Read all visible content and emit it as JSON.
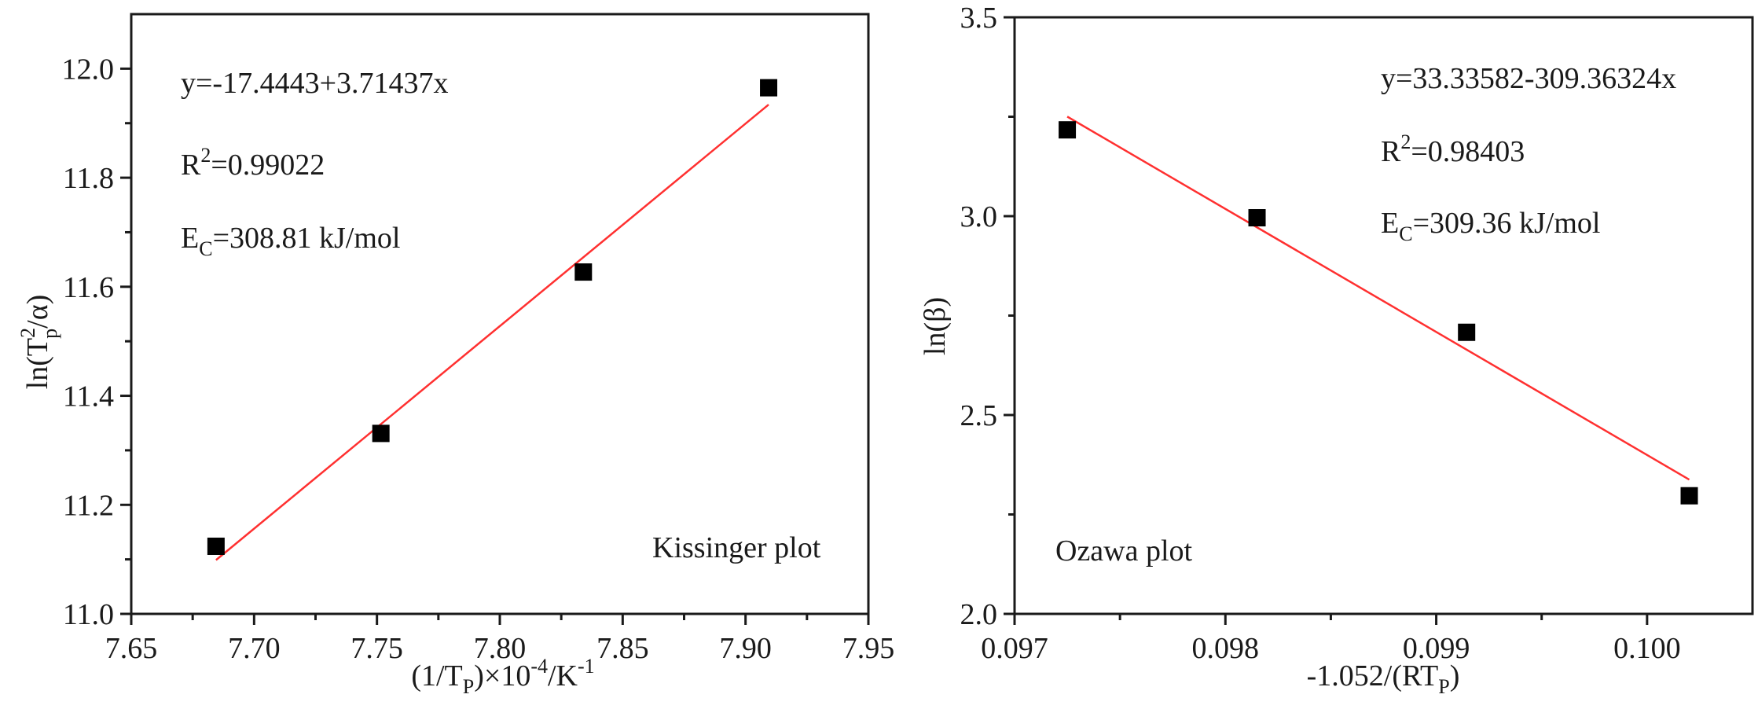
{
  "chart_data": [
    {
      "type": "scatter",
      "id": "kissinger",
      "title": "",
      "plot_label": "Kissinger plot",
      "xlabel": {
        "main": "(1/T",
        "sub": "P",
        "rest1": ")×10",
        "sup1": "-4",
        "rest2": "/K",
        "sup2": "-1"
      },
      "ylabel": {
        "main": "ln(T",
        "sup": "2",
        "sub": "p",
        "rest": "/α)"
      },
      "xlim": [
        7.65,
        7.95
      ],
      "ylim": [
        11.0,
        12.1
      ],
      "xticks": [
        7.65,
        7.7,
        7.75,
        7.8,
        7.85,
        7.9,
        7.95
      ],
      "xtick_labels": [
        "7.65",
        "7.70",
        "7.75",
        "7.80",
        "7.85",
        "7.90",
        "7.95"
      ],
      "xminor": [
        7.675,
        7.725,
        7.775,
        7.825,
        7.875,
        7.925
      ],
      "yticks": [
        11.0,
        11.2,
        11.4,
        11.6,
        11.8,
        12.0
      ],
      "ytick_labels": [
        "11.0",
        "11.2",
        "11.4",
        "11.6",
        "11.8",
        "12.0"
      ],
      "yminor": [
        11.1,
        11.3,
        11.5,
        11.7,
        11.9
      ],
      "grid": false,
      "series": [
        {
          "name": "data",
          "marker": "square",
          "color": "#000000",
          "x": [
            7.6845,
            7.7516,
            7.834,
            7.9094
          ],
          "y": [
            11.124,
            11.331,
            11.627,
            11.965
          ]
        }
      ],
      "fit": {
        "color": "#ff3030",
        "intercept": -17.4443,
        "slope": 3.71437,
        "x_range": [
          7.6845,
          7.9094
        ]
      },
      "annotations": {
        "equation": "y=-17.4443+3.71437x",
        "r2_label": "R",
        "r2_sup": "2",
        "r2_value": "=0.99022",
        "ec_label": "E",
        "ec_sub": "C",
        "ec_value": "=308.81 kJ/mol"
      }
    },
    {
      "type": "scatter",
      "id": "ozawa",
      "title": "",
      "plot_label": "Ozawa plot",
      "xlabel": {
        "main": "-1.052/(RT",
        "sub": "P",
        "rest": ")"
      },
      "ylabel": {
        "main": "ln(β)"
      },
      "xlim": [
        0.097,
        0.1005
      ],
      "ylim": [
        2.0,
        3.5
      ],
      "xticks": [
        0.097,
        0.098,
        0.099,
        0.1
      ],
      "xtick_labels": [
        "0.097",
        "0.098",
        "0.099",
        "0.100"
      ],
      "xminor": [
        0.0975,
        0.0985,
        0.0995
      ],
      "yticks": [
        2.0,
        2.5,
        3.0,
        3.5
      ],
      "ytick_labels": [
        "2.0",
        "2.5",
        "3.0",
        "3.5"
      ],
      "yminor": [
        2.25,
        2.75,
        3.25
      ],
      "grid": false,
      "series": [
        {
          "name": "data",
          "marker": "square",
          "color": "#000000",
          "x": [
            0.09725,
            0.09815,
            0.099144,
            0.1002
          ],
          "y": [
            3.217,
            2.996,
            2.708,
            2.297
          ]
        }
      ],
      "fit": {
        "color": "#ff3030",
        "intercept": 33.33582,
        "slope": -309.36324,
        "x_range": [
          0.09725,
          0.1002
        ]
      },
      "annotations": {
        "equation": "y=33.33582-309.36324x",
        "r2_label": "R",
        "r2_sup": "2",
        "r2_value": "=0.98403",
        "ec_label": "E",
        "ec_sub": "C",
        "ec_value": "=309.36 kJ/mol"
      }
    }
  ]
}
